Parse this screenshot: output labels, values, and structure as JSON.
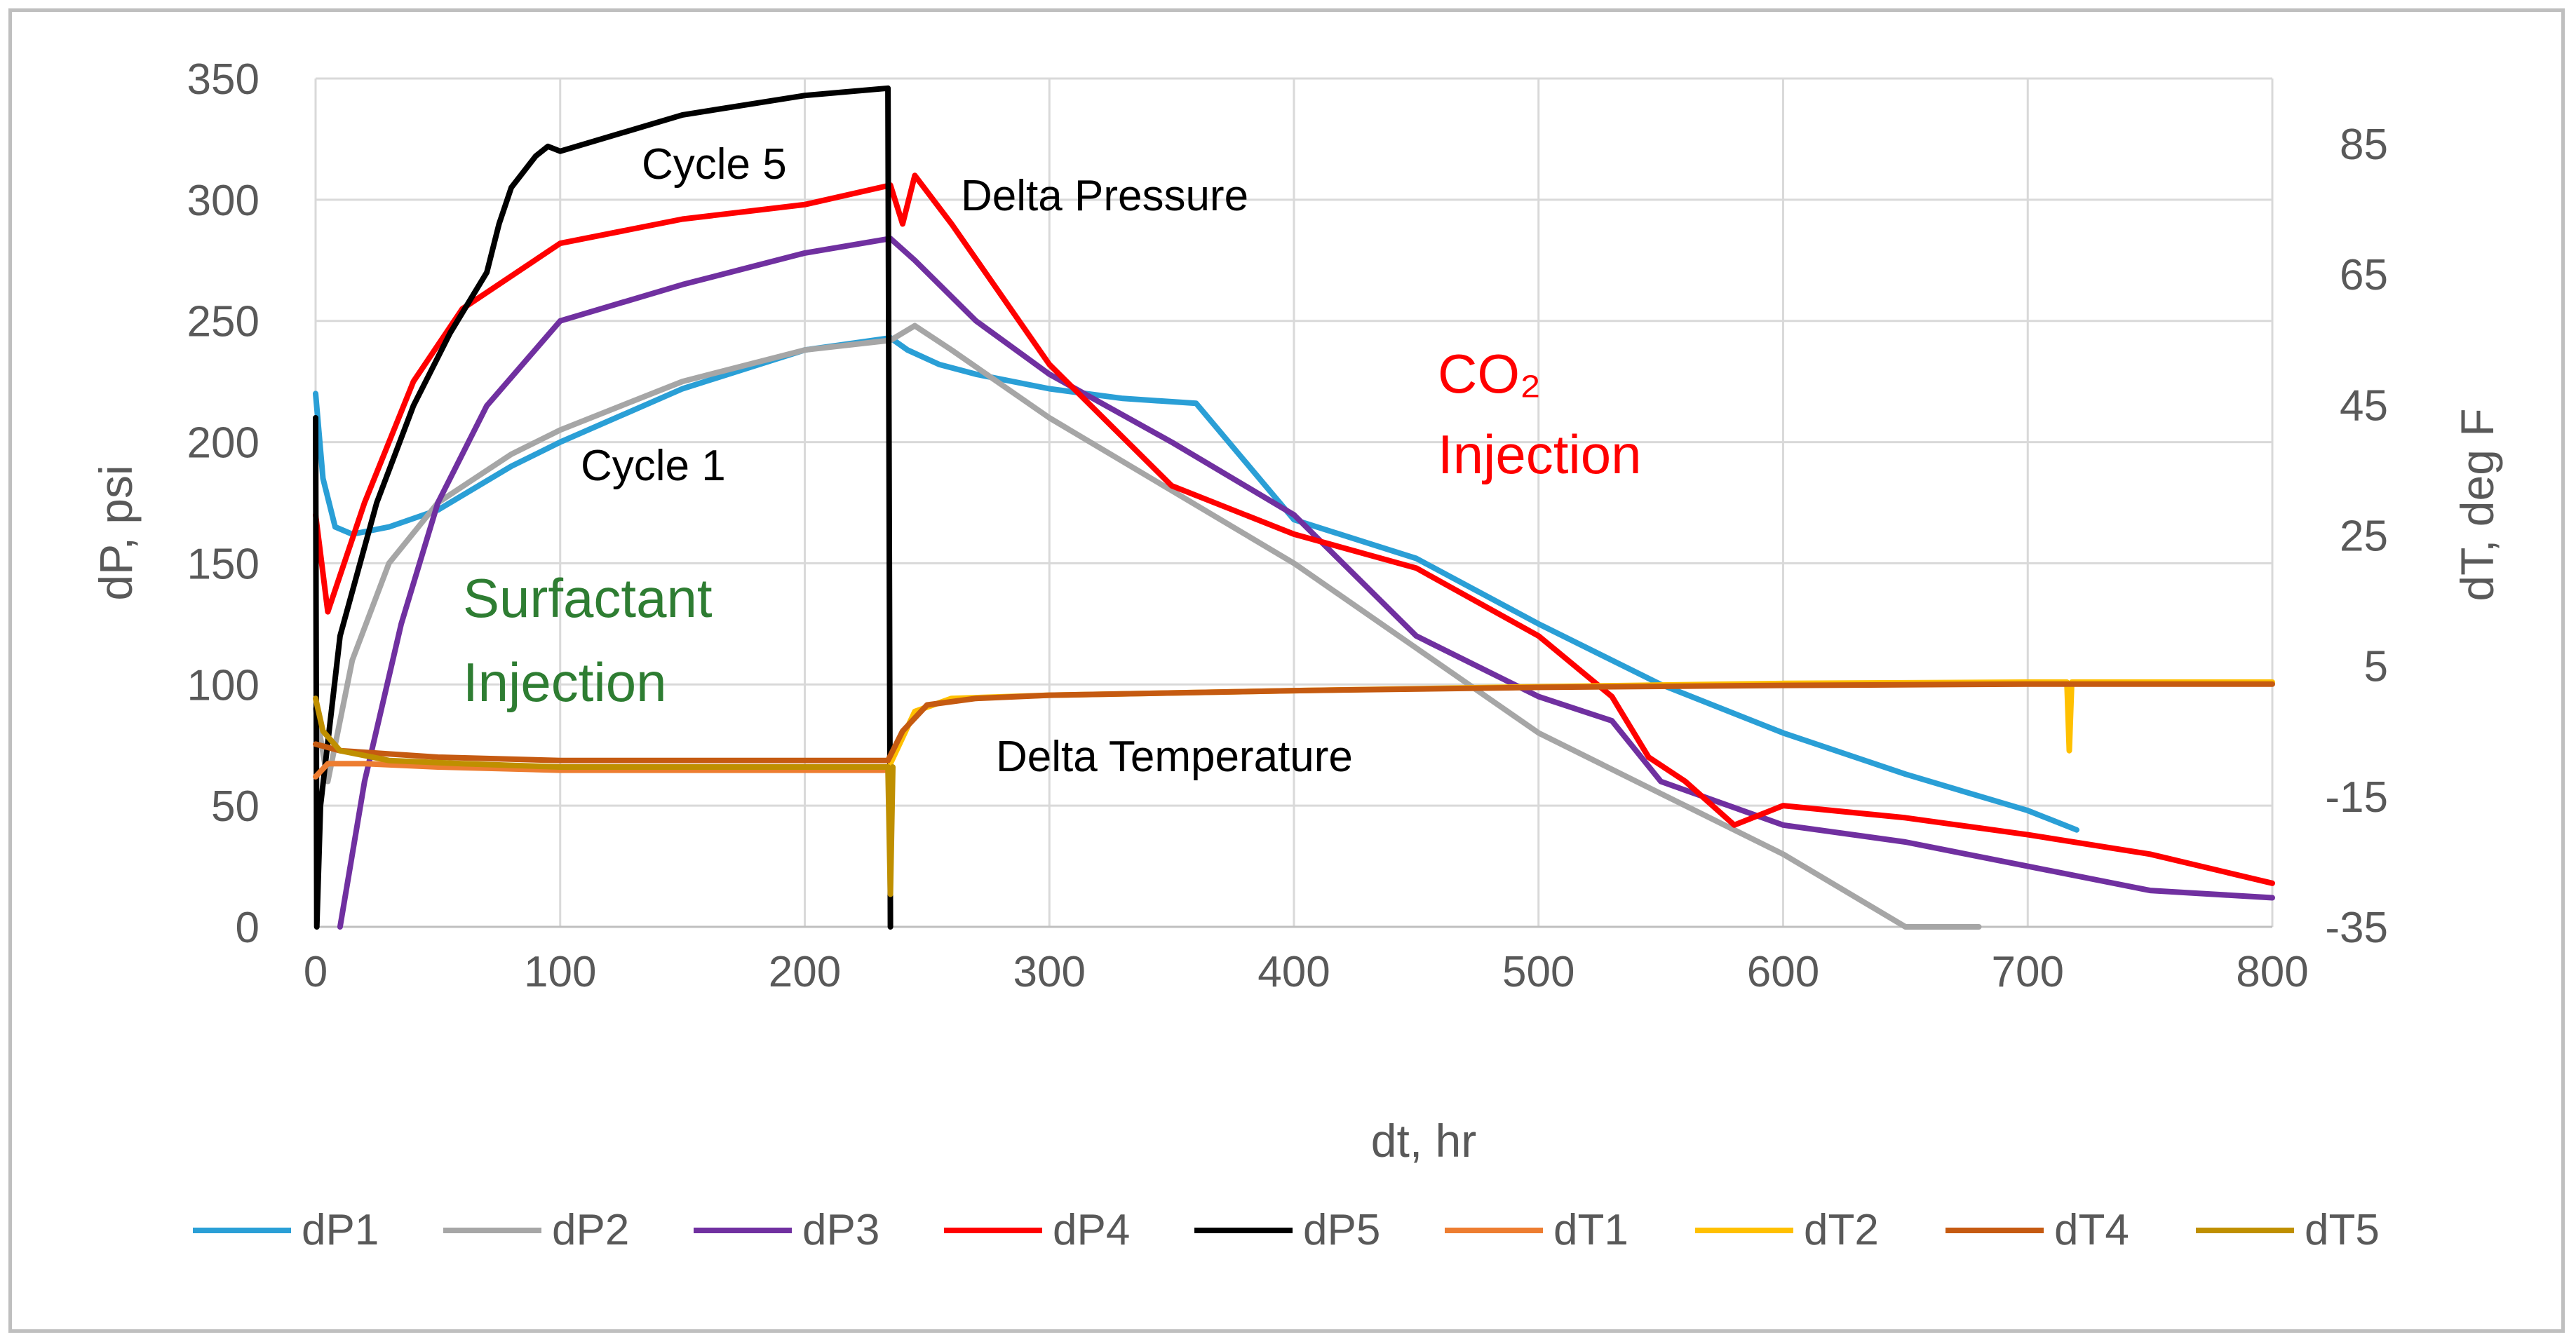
{
  "chart_data": {
    "type": "line",
    "title": "",
    "xlabel": "dt, hr",
    "ylabel": "dP, psi",
    "y2label": "dT, deg F",
    "xlim": [
      0,
      800
    ],
    "ylim": [
      0,
      350
    ],
    "y2lim": [
      -35,
      95
    ],
    "x_ticks": [
      "0",
      "100",
      "200",
      "300",
      "400",
      "500",
      "600",
      "700",
      "800"
    ],
    "y_ticks": [
      "0",
      "50",
      "100",
      "150",
      "200",
      "250",
      "300",
      "350"
    ],
    "y2_ticks": [
      "-35",
      "-15",
      "5",
      "25",
      "45",
      "65",
      "85"
    ],
    "grid": true,
    "legend_position": "bottom",
    "series": [
      {
        "name": "dP1",
        "color": "#2a9fd6",
        "axis": "left",
        "x": [
          0,
          3,
          8,
          15,
          30,
          50,
          80,
          100,
          150,
          200,
          235,
          242,
          255,
          270,
          300,
          330,
          360,
          400,
          450,
          500,
          550,
          600,
          650,
          700,
          720
        ],
        "y": [
          220,
          185,
          165,
          162,
          165,
          172,
          190,
          200,
          222,
          238,
          243,
          238,
          232,
          228,
          222,
          218,
          216,
          168,
          152,
          125,
          100,
          80,
          63,
          48,
          40
        ]
      },
      {
        "name": "dP2",
        "color": "#a6a6a6",
        "axis": "left",
        "x": [
          0,
          5,
          15,
          30,
          50,
          80,
          100,
          150,
          200,
          235,
          245,
          260,
          300,
          350,
          400,
          450,
          500,
          550,
          600,
          650,
          680
        ],
        "y": [
          90,
          60,
          110,
          150,
          175,
          195,
          205,
          225,
          238,
          242,
          248,
          238,
          210,
          180,
          150,
          115,
          80,
          55,
          30,
          0,
          0
        ]
      },
      {
        "name": "dP3",
        "color": "#7030a0",
        "axis": "left",
        "x": [
          10,
          20,
          35,
          50,
          70,
          100,
          150,
          200,
          235,
          245,
          270,
          300,
          350,
          400,
          450,
          500,
          530,
          550,
          600,
          650,
          700,
          750,
          800
        ],
        "y": [
          0,
          60,
          125,
          175,
          215,
          250,
          265,
          278,
          284,
          275,
          250,
          228,
          200,
          170,
          120,
          95,
          85,
          60,
          42,
          35,
          25,
          15,
          12
        ]
      },
      {
        "name": "dP4",
        "color": "#ff0000",
        "axis": "left",
        "x": [
          0,
          5,
          20,
          40,
          60,
          100,
          150,
          200,
          235,
          240,
          245,
          260,
          300,
          350,
          400,
          450,
          500,
          530,
          545,
          560,
          580,
          600,
          650,
          700,
          750,
          800
        ],
        "y": [
          170,
          130,
          175,
          225,
          255,
          282,
          292,
          298,
          306,
          290,
          310,
          290,
          232,
          182,
          162,
          148,
          120,
          95,
          70,
          60,
          42,
          50,
          45,
          38,
          30,
          18
        ]
      },
      {
        "name": "dP5",
        "color": "#000000",
        "axis": "left",
        "x": [
          0,
          0.5,
          2,
          10,
          25,
          40,
          55,
          70,
          75,
          80,
          90,
          95,
          100,
          150,
          200,
          234,
          235
        ],
        "y": [
          210,
          0,
          50,
          120,
          175,
          215,
          245,
          270,
          290,
          305,
          318,
          322,
          320,
          335,
          343,
          346,
          0
        ]
      },
      {
        "name": "dT1",
        "color": "#ed7d31",
        "axis": "right",
        "x": [
          0,
          5,
          20,
          50,
          100,
          150,
          200,
          234
        ],
        "y": [
          -12,
          -10,
          -10,
          -10.5,
          -11,
          -11,
          -11,
          -11
        ]
      },
      {
        "name": "dT2",
        "color": "#ffc000",
        "axis": "right",
        "x": [
          235,
          245,
          260,
          300,
          400,
          500,
          600,
          700,
          716,
          717,
          718,
          720,
          800
        ],
        "y": [
          -10,
          -2,
          0,
          0.5,
          1.2,
          1.8,
          2.3,
          2.5,
          2.5,
          -8,
          2.5,
          2.5,
          2.5
        ]
      },
      {
        "name": "dT4",
        "color": "#c55a11",
        "axis": "right",
        "x": [
          0,
          10,
          50,
          100,
          150,
          200,
          234,
          240,
          250,
          270,
          300,
          400,
          500,
          600,
          700,
          800
        ],
        "y": [
          -7,
          -8,
          -9,
          -9.5,
          -9.5,
          -9.5,
          -9.5,
          -5,
          -1,
          0,
          0.5,
          1.2,
          1.7,
          2,
          2.2,
          2.2
        ]
      },
      {
        "name": "dT5",
        "color": "#bf8f00",
        "axis": "right",
        "x": [
          0,
          3,
          10,
          30,
          60,
          100,
          150,
          200,
          234,
          235,
          236
        ],
        "y": [
          0,
          -5,
          -8,
          -9.5,
          -10,
          -10.5,
          -10.5,
          -10.5,
          -10.5,
          -30,
          -10.5
        ]
      }
    ],
    "annotations": [
      {
        "text": "Cycle 5",
        "color": "#000000"
      },
      {
        "text": "Delta Pressure",
        "color": "#000000"
      },
      {
        "text": "Cycle 1",
        "color": "#000000"
      },
      {
        "text": "CO₂",
        "color": "#ff0000"
      },
      {
        "text": "Injection",
        "color": "#ff0000"
      },
      {
        "text": "Surfactant",
        "color": "#2e7d32"
      },
      {
        "text": "Injection",
        "color": "#2e7d32"
      },
      {
        "text": "Delta Temperature",
        "color": "#000000"
      }
    ]
  }
}
